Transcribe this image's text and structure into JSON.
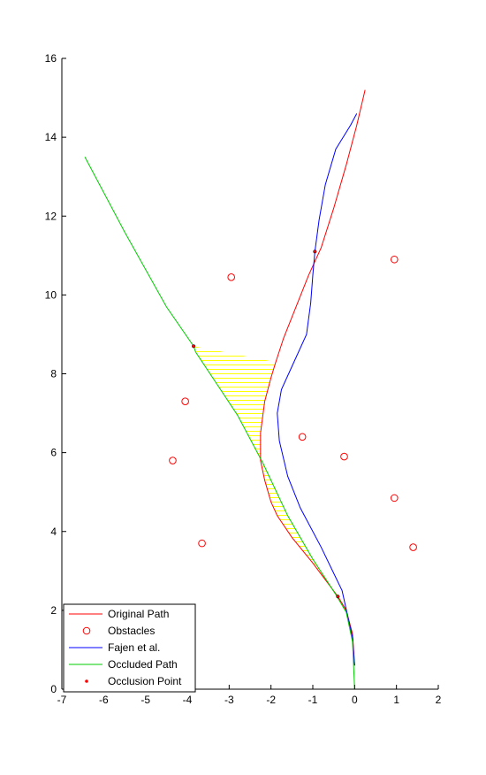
{
  "chart_data": {
    "type": "line",
    "title": "",
    "xlabel": "",
    "ylabel": "",
    "xlim": [
      -7,
      2
    ],
    "ylim": [
      0,
      16
    ],
    "xticks": [
      "-7",
      "-6",
      "-5",
      "-4",
      "-3",
      "-2",
      "-1",
      "0",
      "1",
      "2"
    ],
    "yticks": [
      "0",
      "2",
      "4",
      "6",
      "8",
      "10",
      "12",
      "14",
      "16"
    ],
    "grid": false,
    "legend_position": "bottom-left",
    "series": [
      {
        "name": "Original Path",
        "kind": "line",
        "color": "#ff0000",
        "points": [
          [
            0,
            0.6
          ],
          [
            -0.05,
            1.4
          ],
          [
            -0.2,
            2.0
          ],
          [
            -0.4,
            2.35
          ],
          [
            -1.0,
            3.2
          ],
          [
            -1.5,
            3.85
          ],
          [
            -1.85,
            4.4
          ],
          [
            -2.0,
            4.75
          ],
          [
            -2.15,
            5.3
          ],
          [
            -2.25,
            5.8
          ],
          [
            -2.25,
            6.5
          ],
          [
            -2.15,
            7.3
          ],
          [
            -2.0,
            7.9
          ],
          [
            -1.9,
            8.25
          ],
          [
            -1.7,
            8.9
          ],
          [
            -1.4,
            9.7
          ],
          [
            -1.1,
            10.5
          ],
          [
            -0.8,
            11.2
          ],
          [
            -0.5,
            12.2
          ],
          [
            -0.2,
            13.3
          ],
          [
            0.05,
            14.3
          ],
          [
            0.25,
            15.2
          ]
        ]
      },
      {
        "name": "Obstacles",
        "kind": "marker",
        "color": "#ff0000",
        "points": [
          [
            -2.95,
            10.45
          ],
          [
            0.95,
            10.9
          ],
          [
            -4.05,
            7.3
          ],
          [
            -1.25,
            6.4
          ],
          [
            -4.35,
            5.8
          ],
          [
            -0.25,
            5.9
          ],
          [
            0.95,
            4.85
          ],
          [
            -3.65,
            3.7
          ],
          [
            1.4,
            3.6
          ]
        ]
      },
      {
        "name": "Fajen et al.",
        "kind": "line",
        "color": "#0000ff",
        "points": [
          [
            0,
            0.6
          ],
          [
            -0.05,
            1.3
          ],
          [
            -0.3,
            2.5
          ],
          [
            -0.8,
            3.6
          ],
          [
            -1.3,
            4.6
          ],
          [
            -1.6,
            5.4
          ],
          [
            -1.8,
            6.3
          ],
          [
            -1.85,
            7.0
          ],
          [
            -1.75,
            7.6
          ],
          [
            -1.45,
            8.3
          ],
          [
            -1.15,
            9.0
          ],
          [
            -1.05,
            9.8
          ],
          [
            -1.0,
            10.5
          ],
          [
            -0.95,
            11.1
          ],
          [
            -0.85,
            11.9
          ],
          [
            -0.7,
            12.8
          ],
          [
            -0.45,
            13.7
          ],
          [
            -0.1,
            14.3
          ],
          [
            0.05,
            14.6
          ]
        ]
      },
      {
        "name": "Occluded Path",
        "kind": "line",
        "color": "#00cc00",
        "points": [
          [
            0,
            0.0
          ],
          [
            -0.05,
            1.2
          ],
          [
            -0.2,
            1.95
          ],
          [
            -0.45,
            2.4
          ],
          [
            -1.0,
            3.3
          ],
          [
            -1.6,
            4.4
          ],
          [
            -2.2,
            5.75
          ],
          [
            -2.8,
            6.95
          ],
          [
            -3.8,
            8.55
          ],
          [
            -3.85,
            8.7
          ],
          [
            -4.5,
            9.7
          ],
          [
            -5.5,
            11.6
          ],
          [
            -6.45,
            13.5
          ]
        ]
      },
      {
        "name": "Occlusion Point",
        "kind": "marker",
        "color": "#ff0000",
        "points": [
          [
            -0.4,
            2.35
          ],
          [
            -3.85,
            8.7
          ],
          [
            -0.95,
            11.1
          ]
        ]
      }
    ],
    "shaded_regions": [
      {
        "color": "#ffff00",
        "polygon": [
          [
            -3.85,
            8.7
          ],
          [
            -1.9,
            8.3
          ],
          [
            -2.0,
            7.9
          ],
          [
            -2.15,
            7.3
          ],
          [
            -2.25,
            6.5
          ],
          [
            -2.25,
            5.8
          ],
          [
            -2.8,
            6.95
          ],
          [
            -3.8,
            8.55
          ]
        ]
      },
      {
        "color": "#ffff00",
        "polygon": [
          [
            -2.2,
            5.75
          ],
          [
            -2.15,
            5.3
          ],
          [
            -2.0,
            4.75
          ],
          [
            -1.85,
            4.4
          ],
          [
            -1.5,
            3.85
          ],
          [
            -1.0,
            3.2
          ],
          [
            -0.4,
            2.35
          ],
          [
            -1.0,
            3.3
          ],
          [
            -1.6,
            4.4
          ]
        ]
      }
    ],
    "legend": [
      "Original Path",
      "Obstacles",
      "Fajen et al.",
      "Occluded Path",
      "Occlusion Point"
    ]
  }
}
